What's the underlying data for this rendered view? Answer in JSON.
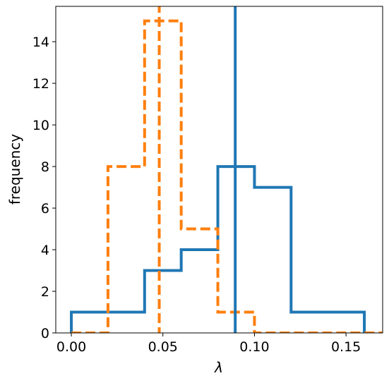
{
  "chart_data": {
    "type": "histogram",
    "xlabel": "λ",
    "ylabel": "frequency",
    "xlim": [
      -0.0085,
      0.17
    ],
    "ylim": [
      0,
      15.7
    ],
    "x_ticks": [
      0.0,
      0.05,
      0.1,
      0.15
    ],
    "x_tick_labels": [
      "0.00",
      "0.05",
      "0.10",
      "0.15"
    ],
    "y_ticks": [
      0,
      2,
      4,
      6,
      8,
      10,
      12,
      14
    ],
    "y_tick_labels": [
      "0",
      "2",
      "4",
      "6",
      "8",
      "10",
      "12",
      "14"
    ],
    "grid": false,
    "series": [
      {
        "style": "solid",
        "color": "#1f77b4",
        "bin_edges": [
          0.0,
          0.02,
          0.04,
          0.06,
          0.08,
          0.1,
          0.12,
          0.14,
          0.16
        ],
        "counts": [
          1,
          1,
          3,
          4,
          8,
          7,
          1,
          1
        ]
      },
      {
        "style": "dashed",
        "color": "#ff7f0e",
        "bin_edges": [
          0.0,
          0.02,
          0.04,
          0.06,
          0.08,
          0.1,
          0.12,
          0.14,
          0.16,
          0.17
        ],
        "counts": [
          0,
          8,
          15,
          5,
          1,
          0,
          0,
          0,
          0
        ]
      }
    ],
    "vertical_lines": [
      {
        "x": 0.0895,
        "color": "#1f77b4",
        "style": "solid"
      },
      {
        "x": 0.048,
        "color": "#ff7f0e",
        "style": "dashed"
      }
    ]
  }
}
